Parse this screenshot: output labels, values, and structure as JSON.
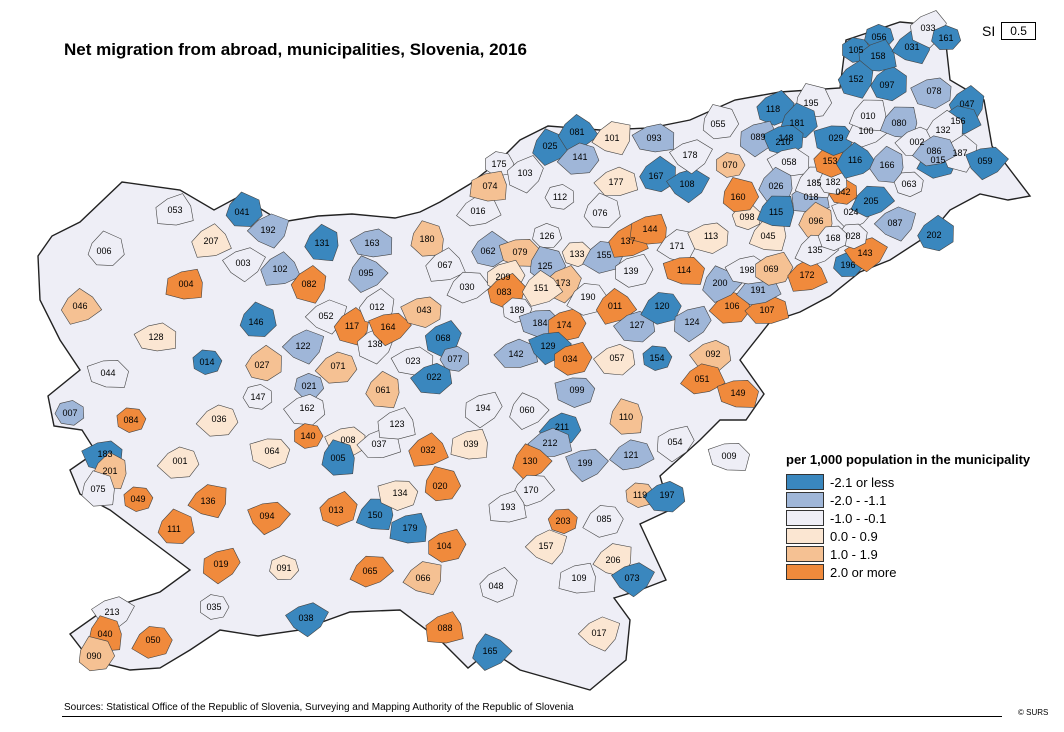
{
  "title": "Net migration from abroad, municipalities, Slovenia, 2016",
  "si": {
    "label": "SI",
    "value": "0.5"
  },
  "legend": {
    "title": "per 1,000 population in the municipality",
    "classes": [
      {
        "label": "-2.1 or less",
        "color": "#3a87be"
      },
      {
        "label": "-2.0 - -1.1",
        "color": "#9fb6d8"
      },
      {
        "label": "-1.0 - -0.1",
        "color": "#eeeef6"
      },
      {
        "label": "0.0 -  0.9",
        "color": "#fbe6d2"
      },
      {
        "label": "1.0 -  1.9",
        "color": "#f5c193"
      },
      {
        "label": "2.0 or more",
        "color": "#f08a3c"
      }
    ]
  },
  "source": "Sources: Statistical Office of the Republic of Slovenia, Surveying and Mapping Authority of the Republic of Slovenia",
  "copyright": "© SURS",
  "municipalities": [
    {
      "code": "053",
      "cls": 2
    },
    {
      "code": "041",
      "cls": 0
    },
    {
      "code": "192",
      "cls": 1
    },
    {
      "code": "131",
      "cls": 0
    },
    {
      "code": "163",
      "cls": 1
    },
    {
      "code": "006",
      "cls": 2
    },
    {
      "code": "207",
      "cls": 3
    },
    {
      "code": "003",
      "cls": 2
    },
    {
      "code": "102",
      "cls": 1
    },
    {
      "code": "082",
      "cls": 5
    },
    {
      "code": "095",
      "cls": 1
    },
    {
      "code": "004",
      "cls": 5
    },
    {
      "code": "046",
      "cls": 4
    },
    {
      "code": "146",
      "cls": 0
    },
    {
      "code": "052",
      "cls": 2
    },
    {
      "code": "117",
      "cls": 5
    },
    {
      "code": "012",
      "cls": 2
    },
    {
      "code": "128",
      "cls": 3
    },
    {
      "code": "014",
      "cls": 0
    },
    {
      "code": "122",
      "cls": 1
    },
    {
      "code": "138",
      "cls": 2
    },
    {
      "code": "164",
      "cls": 5
    },
    {
      "code": "027",
      "cls": 4
    },
    {
      "code": "044",
      "cls": 2
    },
    {
      "code": "007",
      "cls": 1
    },
    {
      "code": "084",
      "cls": 5
    },
    {
      "code": "147",
      "cls": 2
    },
    {
      "code": "021",
      "cls": 1
    },
    {
      "code": "071",
      "cls": 4
    },
    {
      "code": "036",
      "cls": 3
    },
    {
      "code": "162",
      "cls": 2
    },
    {
      "code": "140",
      "cls": 5
    },
    {
      "code": "008",
      "cls": 3
    },
    {
      "code": "037",
      "cls": 2
    },
    {
      "code": "001",
      "cls": 3
    },
    {
      "code": "064",
      "cls": 3
    },
    {
      "code": "005",
      "cls": 0
    },
    {
      "code": "183",
      "cls": 0
    },
    {
      "code": "201",
      "cls": 4
    },
    {
      "code": "075",
      "cls": 2
    },
    {
      "code": "049",
      "cls": 5
    },
    {
      "code": "136",
      "cls": 5
    },
    {
      "code": "094",
      "cls": 5
    },
    {
      "code": "013",
      "cls": 5
    },
    {
      "code": "150",
      "cls": 0
    },
    {
      "code": "111",
      "cls": 5
    },
    {
      "code": "019",
      "cls": 5
    },
    {
      "code": "091",
      "cls": 3
    },
    {
      "code": "035",
      "cls": 2
    },
    {
      "code": "038",
      "cls": 0
    },
    {
      "code": "213",
      "cls": 2
    },
    {
      "code": "040",
      "cls": 5
    },
    {
      "code": "090",
      "cls": 4
    },
    {
      "code": "050",
      "cls": 5
    },
    {
      "code": "180",
      "cls": 4
    },
    {
      "code": "043",
      "cls": 4
    },
    {
      "code": "068",
      "cls": 0
    },
    {
      "code": "077",
      "cls": 1
    },
    {
      "code": "023",
      "cls": 2
    },
    {
      "code": "022",
      "cls": 0
    },
    {
      "code": "061",
      "cls": 4
    },
    {
      "code": "123",
      "cls": 2
    },
    {
      "code": "032",
      "cls": 5
    },
    {
      "code": "134",
      "cls": 3
    },
    {
      "code": "020",
      "cls": 5
    },
    {
      "code": "179",
      "cls": 0
    },
    {
      "code": "104",
      "cls": 5
    },
    {
      "code": "065",
      "cls": 5
    },
    {
      "code": "066",
      "cls": 4
    },
    {
      "code": "088",
      "cls": 5
    },
    {
      "code": "016",
      "cls": 2
    },
    {
      "code": "067",
      "cls": 2
    },
    {
      "code": "030",
      "cls": 2
    },
    {
      "code": "062",
      "cls": 1
    },
    {
      "code": "079",
      "cls": 4
    },
    {
      "code": "209",
      "cls": 3
    },
    {
      "code": "083",
      "cls": 5
    },
    {
      "code": "189",
      "cls": 2
    },
    {
      "code": "184",
      "cls": 1
    },
    {
      "code": "174",
      "cls": 5
    },
    {
      "code": "142",
      "cls": 1
    },
    {
      "code": "129",
      "cls": 0
    },
    {
      "code": "034",
      "cls": 5
    },
    {
      "code": "060",
      "cls": 2
    },
    {
      "code": "194",
      "cls": 2
    },
    {
      "code": "039",
      "cls": 3
    },
    {
      "code": "211",
      "cls": 0
    },
    {
      "code": "212",
      "cls": 1
    },
    {
      "code": "199",
      "cls": 1
    },
    {
      "code": "130",
      "cls": 5
    },
    {
      "code": "170",
      "cls": 2
    },
    {
      "code": "193",
      "cls": 2
    },
    {
      "code": "203",
      "cls": 5
    },
    {
      "code": "157",
      "cls": 3
    },
    {
      "code": "048",
      "cls": 2
    },
    {
      "code": "165",
      "cls": 0
    },
    {
      "code": "025",
      "cls": 0
    },
    {
      "code": "081",
      "cls": 0
    },
    {
      "code": "141",
      "cls": 1
    },
    {
      "code": "101",
      "cls": 3
    },
    {
      "code": "093",
      "cls": 1
    },
    {
      "code": "175",
      "cls": 2
    },
    {
      "code": "103",
      "cls": 2
    },
    {
      "code": "074",
      "cls": 4
    },
    {
      "code": "112",
      "cls": 2
    },
    {
      "code": "177",
      "cls": 3
    },
    {
      "code": "076",
      "cls": 2
    },
    {
      "code": "126",
      "cls": 2
    },
    {
      "code": "125",
      "cls": 1
    },
    {
      "code": "173",
      "cls": 4
    },
    {
      "code": "151",
      "cls": 3
    },
    {
      "code": "133",
      "cls": 3
    },
    {
      "code": "190",
      "cls": 2
    },
    {
      "code": "155",
      "cls": 1
    },
    {
      "code": "139",
      "cls": 2
    },
    {
      "code": "011",
      "cls": 5
    },
    {
      "code": "127",
      "cls": 1
    },
    {
      "code": "057",
      "cls": 3
    },
    {
      "code": "099",
      "cls": 1
    },
    {
      "code": "110",
      "cls": 4
    },
    {
      "code": "121",
      "cls": 1
    },
    {
      "code": "054",
      "cls": 2
    },
    {
      "code": "009",
      "cls": 2
    },
    {
      "code": "119",
      "cls": 4
    },
    {
      "code": "197",
      "cls": 0
    },
    {
      "code": "085",
      "cls": 2
    },
    {
      "code": "206",
      "cls": 3
    },
    {
      "code": "109",
      "cls": 2
    },
    {
      "code": "073",
      "cls": 0
    },
    {
      "code": "017",
      "cls": 3
    },
    {
      "code": "137",
      "cls": 5
    },
    {
      "code": "144",
      "cls": 5
    },
    {
      "code": "171",
      "cls": 2
    },
    {
      "code": "113",
      "cls": 3
    },
    {
      "code": "114",
      "cls": 5
    },
    {
      "code": "120",
      "cls": 0
    },
    {
      "code": "124",
      "cls": 1
    },
    {
      "code": "154",
      "cls": 0
    },
    {
      "code": "092",
      "cls": 4
    },
    {
      "code": "051",
      "cls": 5
    },
    {
      "code": "106",
      "cls": 5
    },
    {
      "code": "107",
      "cls": 5
    },
    {
      "code": "149",
      "cls": 5
    },
    {
      "code": "200",
      "cls": 1
    },
    {
      "code": "191",
      "cls": 1
    },
    {
      "code": "198",
      "cls": 2
    },
    {
      "code": "069",
      "cls": 4
    },
    {
      "code": "172",
      "cls": 5
    },
    {
      "code": "045",
      "cls": 3
    },
    {
      "code": "098",
      "cls": 3
    },
    {
      "code": "160",
      "cls": 5
    },
    {
      "code": "167",
      "cls": 0
    },
    {
      "code": "108",
      "cls": 0
    },
    {
      "code": "178",
      "cls": 2
    },
    {
      "code": "070",
      "cls": 4
    },
    {
      "code": "055",
      "cls": 2
    },
    {
      "code": "118",
      "cls": 0
    },
    {
      "code": "089",
      "cls": 1
    },
    {
      "code": "210",
      "cls": 2
    },
    {
      "code": "195",
      "cls": 2
    },
    {
      "code": "181",
      "cls": 0
    },
    {
      "code": "148",
      "cls": 0
    },
    {
      "code": "058",
      "cls": 2
    },
    {
      "code": "026",
      "cls": 1
    },
    {
      "code": "115",
      "cls": 0
    },
    {
      "code": "018",
      "cls": 1
    },
    {
      "code": "096",
      "cls": 4
    },
    {
      "code": "135",
      "cls": 2
    },
    {
      "code": "024",
      "cls": 2
    },
    {
      "code": "042",
      "cls": 5
    },
    {
      "code": "185",
      "cls": 2
    },
    {
      "code": "182",
      "cls": 2
    },
    {
      "code": "153",
      "cls": 5
    },
    {
      "code": "029",
      "cls": 0
    },
    {
      "code": "100",
      "cls": 2
    },
    {
      "code": "116",
      "cls": 0
    },
    {
      "code": "010",
      "cls": 2
    },
    {
      "code": "080",
      "cls": 1
    },
    {
      "code": "166",
      "cls": 1
    },
    {
      "code": "002",
      "cls": 2
    },
    {
      "code": "063",
      "cls": 2
    },
    {
      "code": "205",
      "cls": 0
    },
    {
      "code": "087",
      "cls": 1
    },
    {
      "code": "202",
      "cls": 0
    },
    {
      "code": "196",
      "cls": 0
    },
    {
      "code": "143",
      "cls": 5
    },
    {
      "code": "028",
      "cls": 2
    },
    {
      "code": "168",
      "cls": 2
    },
    {
      "code": "078",
      "cls": 1
    },
    {
      "code": "097",
      "cls": 0
    },
    {
      "code": "105",
      "cls": 0
    },
    {
      "code": "056",
      "cls": 0
    },
    {
      "code": "158",
      "cls": 0
    },
    {
      "code": "031",
      "cls": 0
    },
    {
      "code": "152",
      "cls": 0
    },
    {
      "code": "033",
      "cls": 2
    },
    {
      "code": "161",
      "cls": 0
    },
    {
      "code": "047",
      "cls": 0
    },
    {
      "code": "156",
      "cls": 0
    },
    {
      "code": "132",
      "cls": 2
    },
    {
      "code": "015",
      "cls": 0
    },
    {
      "code": "187",
      "cls": 2
    },
    {
      "code": "059",
      "cls": 0
    },
    {
      "code": "086",
      "cls": 1
    }
  ]
}
